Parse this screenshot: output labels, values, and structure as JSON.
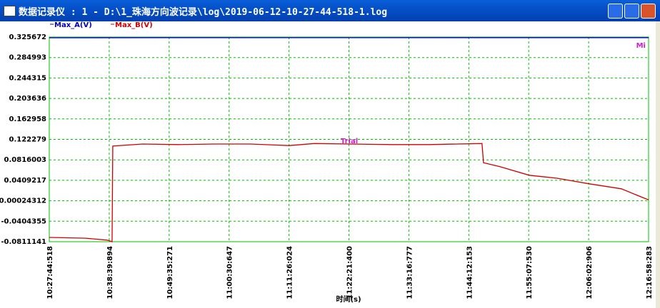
{
  "window": {
    "title": "数据记录仪 : 1 - D:\\1_珠海方向波记录\\log\\2019-06-12-10-27-44-518-1.log"
  },
  "chart_data": {
    "type": "line",
    "watermark": "Trial",
    "corner_label": "Mi",
    "xlabel": "时间(s)",
    "xlim": [
      "10:27:44:518",
      "12:16:58:283"
    ],
    "xticks": [
      "10:27:44:518",
      "10:38:39:894",
      "10:49:35:271",
      "11:00:30:647",
      "11:11:26:024",
      "11:22:21:400",
      "11:33:16:777",
      "11:44:12:153",
      "11:55:07:530",
      "12:06:02:906",
      "12:16:58:283"
    ],
    "ylim": [
      -0.0811141,
      0.325672
    ],
    "yticks": [
      0.325672,
      0.284993,
      0.244315,
      0.203636,
      0.162958,
      0.122279,
      0.0816003,
      0.0409217,
      0.00024312,
      -0.0404355,
      -0.0811141
    ],
    "grid": true,
    "grid_color": "#00c000",
    "series": [
      {
        "name": "Max_A(V)",
        "color": "#0000c0",
        "x": [
          "10:27:44",
          "10:50:00",
          "11:20:00",
          "11:50:00",
          "12:16:58"
        ],
        "values": [
          0.3243,
          0.3245,
          0.3244,
          0.3246,
          0.3245
        ]
      },
      {
        "name": "Max_B(V)",
        "color": "#d00000",
        "x": [
          "10:27:44",
          "10:34:22",
          "10:38:17",
          "10:39:11",
          "10:39:19",
          "10:44:47",
          "10:51:18",
          "10:57:48",
          "11:04:19",
          "11:11:28",
          "11:16:02",
          "11:22:25",
          "11:30:21",
          "11:36:52",
          "11:42:04",
          "11:46:37",
          "11:46:53",
          "11:49:53",
          "11:55:13",
          "12:00:18",
          "12:06:09",
          "12:12:01",
          "12:16:58"
        ],
        "values": [
          -0.0726,
          -0.0741,
          -0.078,
          -0.0811,
          0.109,
          0.113,
          0.112,
          0.113,
          0.113,
          0.11,
          0.114,
          0.113,
          0.112,
          0.112,
          0.113,
          0.114,
          0.076,
          0.068,
          0.051,
          0.045,
          0.034,
          0.024,
          0.002
        ]
      }
    ]
  }
}
